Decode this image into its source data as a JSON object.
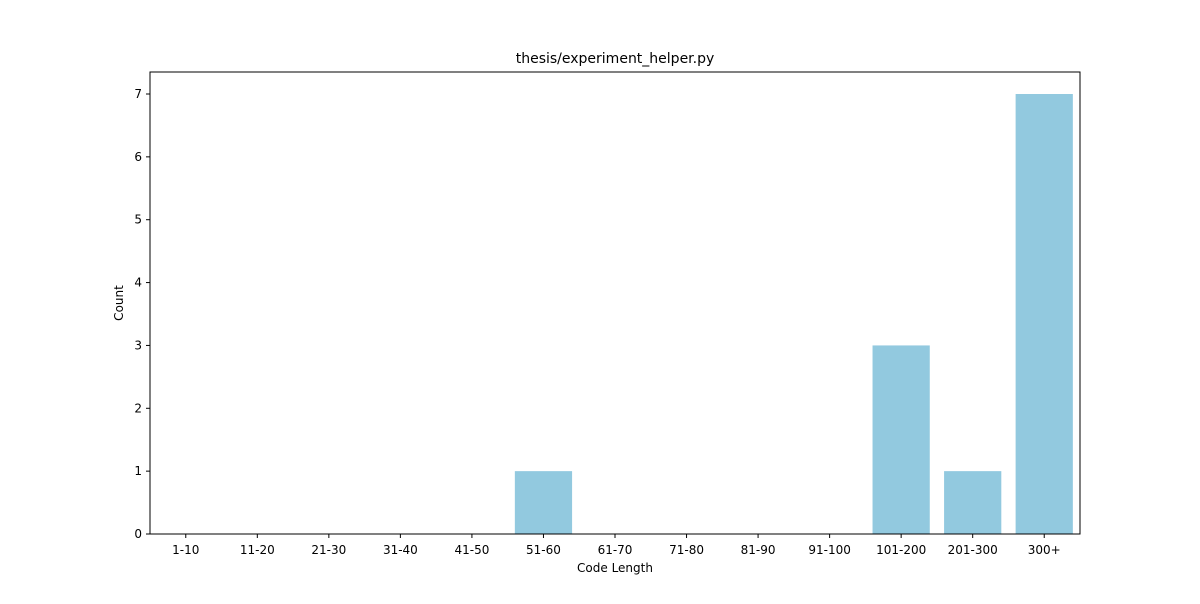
{
  "chart_data": {
    "type": "bar",
    "title": "thesis/experiment_helper.py",
    "xlabel": "Code Length",
    "ylabel": "Count",
    "categories": [
      "1-10",
      "11-20",
      "21-30",
      "31-40",
      "41-50",
      "51-60",
      "61-70",
      "71-80",
      "81-90",
      "91-100",
      "101-200",
      "201-300",
      "300+"
    ],
    "values": [
      0,
      0,
      0,
      0,
      0,
      1,
      0,
      0,
      0,
      0,
      3,
      1,
      7
    ],
    "yticks": [
      0,
      1,
      2,
      3,
      4,
      5,
      6,
      7
    ],
    "ylim": [
      0,
      7.35
    ],
    "grid": false,
    "bar_color": "#92c9df"
  }
}
